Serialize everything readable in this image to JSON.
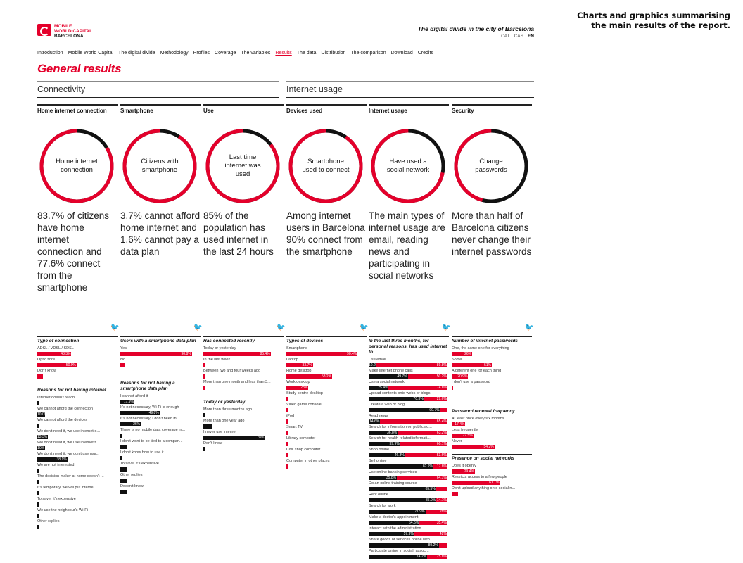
{
  "caption": "Charts and graphics summarising the main results of the report.",
  "logo": {
    "line1": "MOBILE",
    "line2": "WORLD CAPITAL",
    "line3": "BARCELONA"
  },
  "doc_title": "The digital divide in the city of Barcelona",
  "languages": [
    "CAT",
    "CAS",
    "EN"
  ],
  "active_language": "EN",
  "nav": [
    "Introduction",
    "Mobile World Capital",
    "The digital divide",
    "Methodology",
    "Profiles",
    "Coverage",
    "The variables",
    "Results",
    "The data",
    "Distribution",
    "The comparison",
    "Download",
    "Credits"
  ],
  "active_nav": "Results",
  "page_title": "General results",
  "sections": {
    "connectivity": "Connectivity",
    "internet_usage": "Internet usage"
  },
  "colors": {
    "accent": "#e4002b",
    "dark": "#111111"
  },
  "columns": [
    {
      "title": "Home internet connection",
      "donut_label": "Home internet connection",
      "donut_value": 0.837,
      "headline": "83.7% of citizens have home internet connection and 77.6% connect from the smartphone",
      "blocks": [
        {
          "title": "Type of connection",
          "rows": [
            {
              "label": "ADSL / VDSL / SDSL",
              "color": "r",
              "value": 43.3,
              "text": "43.3%"
            },
            {
              "label": "Optic fibre",
              "color": "r",
              "value": 50.0,
              "text": "50.0%"
            },
            {
              "label": "Don't know",
              "color": "r",
              "value": 7,
              "text": ""
            }
          ]
        },
        {
          "title": "Reasons for not having internet",
          "rows": [
            {
              "label": "Internet doesn't reach",
              "color": "k",
              "value": 1,
              "text": ""
            },
            {
              "label": "We cannot afford the connection",
              "color": "k",
              "value": 10.0,
              "text": "10.0%"
            },
            {
              "label": "We cannot afford the devices",
              "color": "k",
              "value": 2,
              "text": ""
            },
            {
              "label": "We don't need it, we use internet o...",
              "color": "k",
              "value": 13.3,
              "text": "13.3%"
            },
            {
              "label": "We don't need it, we use internet f...",
              "color": "k",
              "value": 10,
              "text": "10%"
            },
            {
              "label": "We don't need it, we don't use usa...",
              "color": "k",
              "value": 38.1,
              "text": "38.1%"
            },
            {
              "label": "We are not interested",
              "color": "k",
              "value": 2,
              "text": ""
            },
            {
              "label": "The decision maker at home doesn't ...",
              "color": "k",
              "value": 2,
              "text": ""
            },
            {
              "label": "It's temporary, we will put interne...",
              "color": "k",
              "value": 2,
              "text": ""
            },
            {
              "label": "To save, it's expensive",
              "color": "k",
              "value": 2,
              "text": ""
            },
            {
              "label": "We use the neighbour's Wi-Fi",
              "color": "k",
              "value": 2,
              "text": ""
            },
            {
              "label": "Other replies",
              "color": "k",
              "value": 2,
              "text": ""
            }
          ]
        }
      ]
    },
    {
      "title": "Smartphone",
      "donut_label": "Citizens with smartphone",
      "donut_value": 0.908,
      "headline": "3.7% cannot afford home internet and 1.6% cannot pay a data plan",
      "blocks": [
        {
          "title": "Users with a smartphone data plan",
          "rows": [
            {
              "label": "Yes",
              "color": "r",
              "value": 90.8,
              "text": "90.8%"
            },
            {
              "label": "No",
              "color": "r",
              "value": 5,
              "text": ""
            }
          ]
        },
        {
          "title": "Reasons for not having a smartphone data plan",
          "rows": [
            {
              "label": "I cannot afford it",
              "color": "k",
              "value": 17.9,
              "text": "17.9%"
            },
            {
              "label": "It's not necessary, Wi-Fi is enough",
              "color": "k",
              "value": 49.8,
              "text": "49.8%"
            },
            {
              "label": "It's not necessary, I don't need in...",
              "color": "k",
              "value": 26,
              "text": "26%"
            },
            {
              "label": "There is no mobile data coverage in...",
              "color": "k",
              "value": 2,
              "text": ""
            },
            {
              "label": "I don't want to be tied to a compan...",
              "color": "k",
              "value": 8,
              "text": ""
            },
            {
              "label": "I don't know how to use it",
              "color": "k",
              "value": 3,
              "text": ""
            },
            {
              "label": "To save, it's expensive",
              "color": "k",
              "value": 8,
              "text": ""
            },
            {
              "label": "Other replies",
              "color": "k",
              "value": 8,
              "text": ""
            },
            {
              "label": "Doesn't know",
              "color": "k",
              "value": 8,
              "text": ""
            }
          ]
        }
      ]
    },
    {
      "title": "Use",
      "donut_label": "Last time internet was used",
      "donut_value": 0.854,
      "headline": "85% of the population has used internet in the last 24 hours",
      "blocks": [
        {
          "title": "Has connected recently",
          "rows": [
            {
              "label": "Today or yesterday",
              "color": "r",
              "value": 85.4,
              "text": "85.4%"
            },
            {
              "label": "In the last week",
              "color": "r",
              "value": 2,
              "text": ""
            },
            {
              "label": "Between two and four weeks ago",
              "color": "r",
              "value": 1,
              "text": ""
            },
            {
              "label": "More than one month and less than 3...",
              "color": "r",
              "value": 1,
              "text": ""
            }
          ]
        },
        {
          "title": "Today or yesterday",
          "rows": [
            {
              "label": "More than three months ago",
              "color": "k",
              "value": 3,
              "text": ""
            },
            {
              "label": "More than one year ago",
              "color": "k",
              "value": 12,
              "text": ""
            },
            {
              "label": "I never use internet",
              "color": "k",
              "value": 78,
              "text": "78%"
            },
            {
              "label": "Don't know",
              "color": "k",
              "value": 1,
              "text": ""
            }
          ]
        }
      ]
    },
    {
      "title": "Devices used",
      "donut_label": "Smartphone used to connect",
      "donut_value": 0.904,
      "headline": "Among internet users in Barcelona 90% connect from the smartphone",
      "blocks": [
        {
          "title": "Types of devices",
          "rows": [
            {
              "label": "Smartphone",
              "color": "r",
              "value": 90.4,
              "text": "90.4%"
            },
            {
              "label": "Laptop",
              "color": "r",
              "value": 33.7,
              "text": "33.7%"
            },
            {
              "label": "Home desktop",
              "color": "r",
              "value": 58.2,
              "text": "58.2%"
            },
            {
              "label": "Work desktop",
              "color": "r",
              "value": 28,
              "text": "28%"
            },
            {
              "label": "Study-centre desktop",
              "color": "r",
              "value": 1,
              "text": ""
            },
            {
              "label": "Video game console",
              "color": "r",
              "value": 1,
              "text": ""
            },
            {
              "label": "iPod",
              "color": "r",
              "value": 1,
              "text": ""
            },
            {
              "label": "Smart TV",
              "color": "r",
              "value": 1,
              "text": ""
            },
            {
              "label": "Library computer",
              "color": "r",
              "value": 1,
              "text": ""
            },
            {
              "label": "Civil shop computer",
              "color": "r",
              "value": 1,
              "text": ""
            },
            {
              "label": "Computer in other places",
              "color": "r",
              "value": 1,
              "text": ""
            }
          ]
        }
      ]
    },
    {
      "title": "Internet usage",
      "donut_label": "Have used a social network",
      "donut_value": 0.72,
      "headline": "The main types of internet usage are email, reading news and participating in social networks",
      "blocks": [
        {
          "title": "In the last three months, for personal reasons, has used internet to:",
          "rows": [
            {
              "label": "Use email",
              "pairs": [
                [
                  "k",
                  10.2,
                  "10.2%"
                ],
                [
                  "r",
                  89.8,
                  "89.8%"
                ]
              ]
            },
            {
              "label": "Make internet phone calls",
              "pairs": [
                [
                  "k",
                  49.7,
                  "49.7%"
                ],
                [
                  "r",
                  50.2,
                  "50.2%"
                ]
              ]
            },
            {
              "label": "Use a social network",
              "pairs": [
                [
                  "k",
                  25.4,
                  "25.4%"
                ],
                [
                  "r",
                  74.6,
                  "74.6%"
                ]
              ]
            },
            {
              "label": "Upload contents onto webs or blogs",
              "pairs": [
                [
                  "k",
                  70.3,
                  "70.3%"
                ],
                [
                  "r",
                  29.6,
                  "29.6%"
                ]
              ]
            },
            {
              "label": "Create a web or blog",
              "pairs": [
                [
                  "k",
                  90.7,
                  "90.7%"
                ],
                [
                  "r",
                  9.3,
                  ""
                ]
              ]
            },
            {
              "label": "Read news",
              "pairs": [
                [
                  "k",
                  14.6,
                  "14.6%"
                ],
                [
                  "r",
                  85.4,
                  "85.4%"
                ]
              ]
            },
            {
              "label": "Search for information on public ad...",
              "pairs": [
                [
                  "k",
                  36.8,
                  "36.8%"
                ],
                [
                  "r",
                  63.2,
                  "63.2%"
                ]
              ]
            },
            {
              "label": "Search for health-related informati...",
              "pairs": [
                [
                  "k",
                  39.9,
                  "39.9%"
                ],
                [
                  "r",
                  60.1,
                  "60.1%"
                ]
              ]
            },
            {
              "label": "Shop online",
              "pairs": [
                [
                  "k",
                  46.3,
                  "46.3%"
                ],
                [
                  "r",
                  53.6,
                  "53.6%"
                ]
              ]
            },
            {
              "label": "Sell online",
              "pairs": [
                [
                  "k",
                  82.2,
                  "82.2%"
                ],
                [
                  "r",
                  17.8,
                  "17.8%"
                ]
              ]
            },
            {
              "label": "Use online banking services",
              "pairs": [
                [
                  "k",
                  35.8,
                  "35.8%"
                ],
                [
                  "r",
                  64.1,
                  "64.1%"
                ]
              ]
            },
            {
              "label": "Do an online training course",
              "pairs": [
                [
                  "k",
                  85.5,
                  "85.5%"
                ],
                [
                  "r",
                  14.5,
                  ""
                ]
              ]
            },
            {
              "label": "Rent online",
              "pairs": [
                [
                  "k",
                  85.9,
                  "85.9%"
                ],
                [
                  "r",
                  14.1,
                  "14.1%"
                ]
              ]
            },
            {
              "label": "Search for work",
              "pairs": [
                [
                  "k",
                  71.9,
                  "71.9%"
                ],
                [
                  "r",
                  28,
                  "28%"
                ]
              ]
            },
            {
              "label": "Make a doctor's appointment",
              "pairs": [
                [
                  "k",
                  64.5,
                  "64.5%"
                ],
                [
                  "r",
                  35.4,
                  "35.4%"
                ]
              ]
            },
            {
              "label": "Interact with the administration",
              "pairs": [
                [
                  "k",
                  57.9,
                  "57.9%"
                ],
                [
                  "r",
                  42,
                  "42%"
                ]
              ]
            },
            {
              "label": "Share goods or services online with...",
              "pairs": [
                [
                  "k",
                  89.2,
                  "89.2%"
                ],
                [
                  "r",
                  10.8,
                  ""
                ]
              ]
            },
            {
              "label": "Participate online in social, assoc...",
              "pairs": [
                [
                  "k",
                  74.2,
                  "74.2%"
                ],
                [
                  "r",
                  25.8,
                  "25.8%"
                ]
              ]
            }
          ]
        }
      ]
    },
    {
      "title": "Security",
      "donut_label": "Change passwords",
      "donut_value": 0.46,
      "headline": "More than half of Barcelona citizens never change their internet passwords",
      "blocks": [
        {
          "title": "Number of internet passwords",
          "rows": [
            {
              "label": "One, the same one for everything",
              "color": "r",
              "value": 26,
              "text": "26%"
            },
            {
              "label": "Some",
              "color": "r",
              "value": 51,
              "text": "51%"
            },
            {
              "label": "A different one for each thing",
              "color": "r",
              "value": 20.9,
              "text": "20.9%"
            },
            {
              "label": "I don't use a password",
              "color": "r",
              "value": 2,
              "text": ""
            }
          ]
        },
        {
          "title": "Password renewal frequency",
          "rows": [
            {
              "label": "At least once every six months",
              "color": "r",
              "value": 17.4,
              "text": "17.4%"
            },
            {
              "label": "Less frequently",
              "color": "r",
              "value": 27.5,
              "text": "27.5%"
            },
            {
              "label": "Never",
              "color": "r",
              "value": 54.2,
              "text": "54.2%"
            }
          ]
        },
        {
          "title": "Presence on social networks",
          "rows": [
            {
              "label": "Does it openly",
              "color": "r",
              "value": 29.4,
              "text": "29.4%"
            },
            {
              "label": "Restricts access to a few people",
              "color": "r",
              "value": 61.1,
              "text": "61.1%"
            },
            {
              "label": "Don't upload anything onto social n...",
              "color": "r",
              "value": 8,
              "text": ""
            }
          ]
        }
      ]
    }
  ]
}
